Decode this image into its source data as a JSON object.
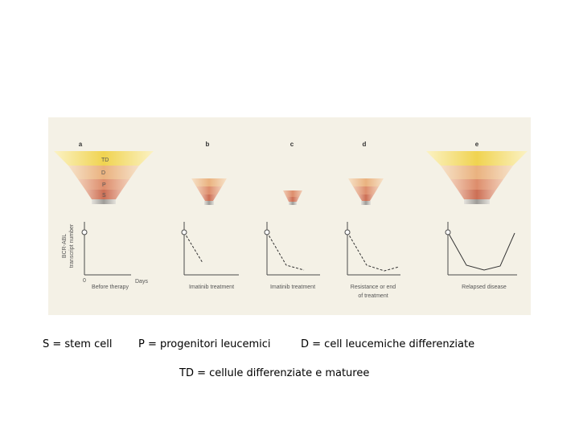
{
  "figure": {
    "panel_letters": [
      "a",
      "b",
      "c",
      "d",
      "e"
    ],
    "funnel_layers": [
      "TD",
      "D",
      "P",
      "S"
    ],
    "y_axis_label_line1": "BCR-ABL",
    "y_axis_label_line2": "transcript number",
    "x_axis_label": "Days",
    "origin_label": "0",
    "captions": [
      [
        "Before therapy"
      ],
      [
        "Imatinib treatment"
      ],
      [
        "Imatinib treatment"
      ],
      [
        "Resistance or end",
        "of treatment"
      ],
      [
        "Relapsed disease"
      ]
    ],
    "curve_trend": [
      "baseline only",
      "falling",
      "falling then low plateau",
      "falling then slight rise",
      "falling then relapse"
    ]
  },
  "legend": {
    "s": "S  = stem cell",
    "p": "P = progenitori leucemici",
    "d": "D = cell leucemiche differenziate",
    "td": "TD = cellule differenziate e maturee"
  },
  "colors": {
    "figure_bg": "#f4f1e6",
    "td_layer": "#f3de78",
    "d_layer": "#f1c49a",
    "p_layer": "#e8a482",
    "s_layer": "#d9886e",
    "axis": "#4a4a4a",
    "curve": "#333333"
  }
}
